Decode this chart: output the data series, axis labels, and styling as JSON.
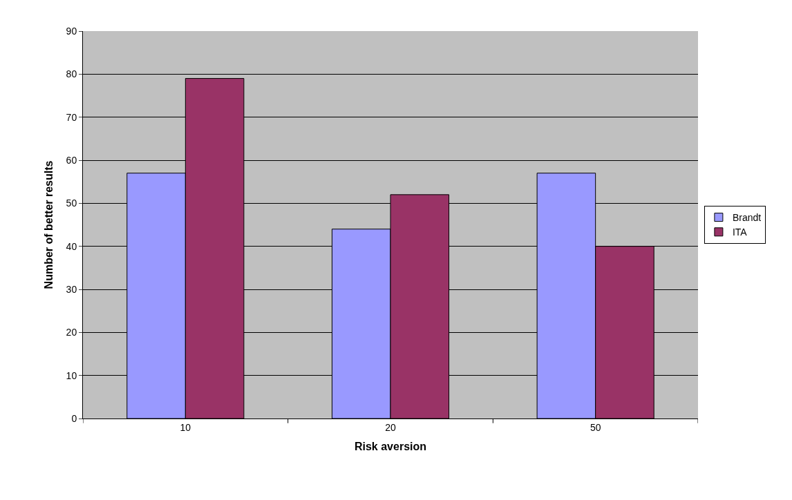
{
  "chart_data": {
    "type": "bar",
    "xlabel": "Risk aversion",
    "ylabel": "Number of better results",
    "categories": [
      "10",
      "20",
      "50"
    ],
    "series": [
      {
        "name": "Brandt",
        "color": "#9999ff",
        "values": [
          57,
          44,
          57
        ]
      },
      {
        "name": "ITA",
        "color": "#993366",
        "values": [
          79,
          52,
          40
        ]
      }
    ],
    "ylim": [
      0,
      90
    ],
    "yticks": [
      0,
      10,
      20,
      30,
      40,
      50,
      60,
      70,
      80,
      90
    ],
    "grid": "y",
    "legend": "right"
  }
}
